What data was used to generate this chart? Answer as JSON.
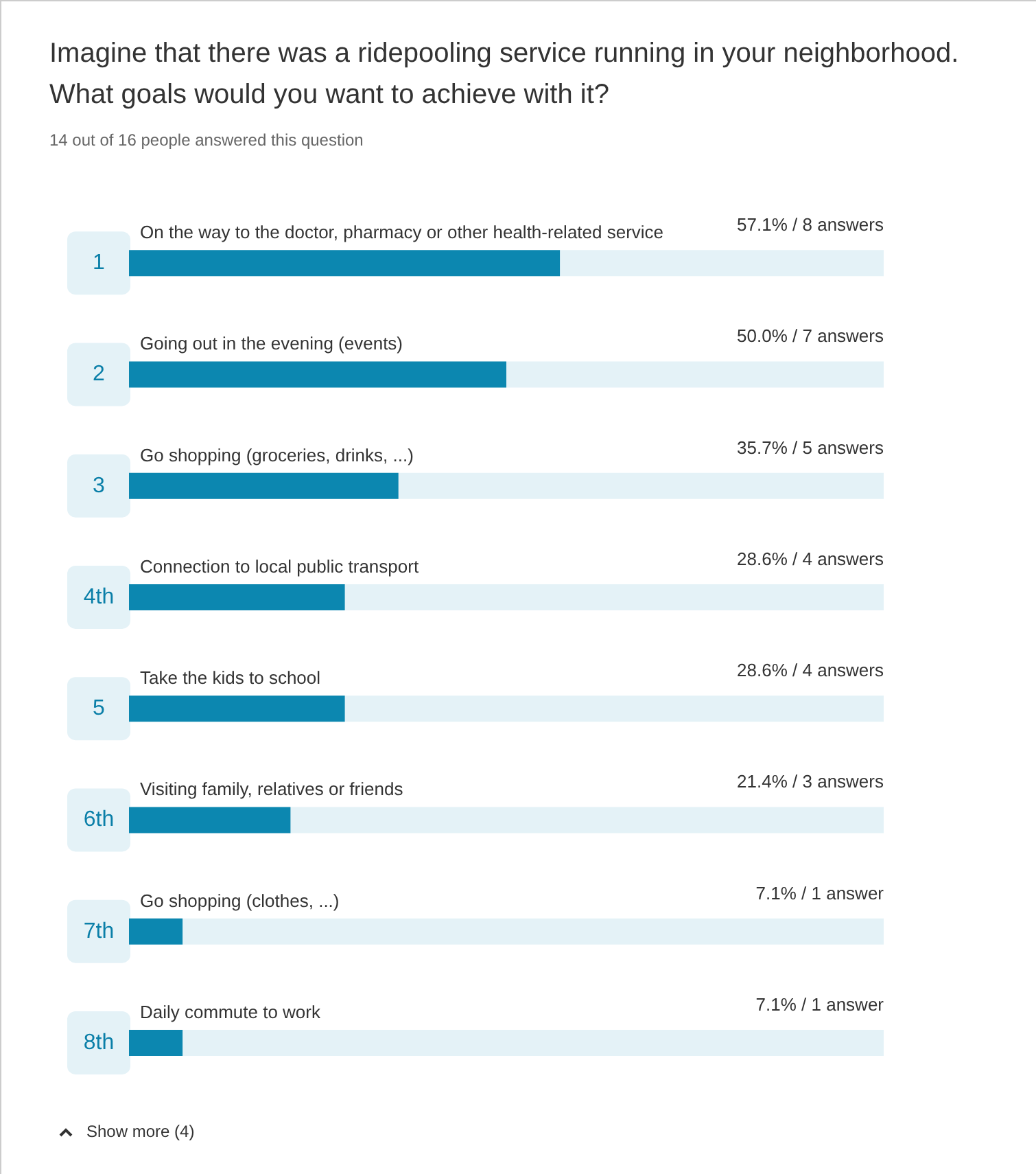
{
  "chart_data": {
    "type": "bar",
    "orientation": "horizontal",
    "title": "Imagine that there was a ridepooling service running in your neighborhood. What goals would you want to achieve with it?",
    "subtitle": "14 out of 16 people answered this question",
    "categories": [
      "On the way to the doctor, pharmacy or other health-related service",
      "Going out in the evening (events)",
      "Go shopping (groceries, drinks, ...)",
      "Connection to local public transport",
      "Take the kids to school",
      "Visiting family, relatives or friends",
      "Go shopping (clothes, ...)",
      "Daily commute to work"
    ],
    "values": [
      57.1,
      50.0,
      35.7,
      28.6,
      28.6,
      21.4,
      7.1,
      7.1
    ],
    "value_labels": [
      "57.1% / 8 answers",
      "50.0% / 7 answers",
      "35.7% / 5 answers",
      "28.6% / 4 answers",
      "28.6% / 4 answers",
      "21.4% / 3 answers",
      "7.1% / 1 answer",
      "7.1% / 1 answer"
    ],
    "color": "#0c87b0",
    "xlim": [
      0,
      100
    ],
    "tick_labels": false,
    "annotations": [
      "1",
      "2",
      "3",
      "4th",
      "5",
      "6th",
      "7th",
      "8th",
      "Show more (4)"
    ]
  }
}
